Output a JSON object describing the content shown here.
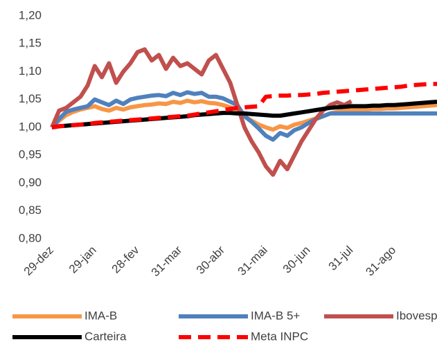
{
  "chart_data": {
    "type": "line",
    "categories": [
      "29-dez",
      null,
      null,
      null,
      null,
      null,
      "29-jan",
      null,
      null,
      null,
      null,
      null,
      "28-fev",
      null,
      null,
      null,
      null,
      null,
      "31-mar",
      null,
      null,
      null,
      null,
      null,
      "30-abr",
      null,
      null,
      null,
      null,
      null,
      "31-mai",
      null,
      null,
      null,
      null,
      null,
      "30-jun",
      null,
      null,
      null,
      null,
      null,
      "31-jul",
      null,
      null,
      null,
      null,
      null,
      "31-ago",
      null,
      null,
      null,
      null,
      null,
      null
    ],
    "ylim": [
      0.8,
      1.2
    ],
    "yticks": [
      {
        "value": 0.8,
        "label": "0,80"
      },
      {
        "value": 0.85,
        "label": "0,85"
      },
      {
        "value": 0.9,
        "label": "0,90"
      },
      {
        "value": 0.95,
        "label": "0,95"
      },
      {
        "value": 1.0,
        "label": "1,00"
      },
      {
        "value": 1.05,
        "label": "1,05"
      },
      {
        "value": 1.1,
        "label": "1,10"
      },
      {
        "value": 1.15,
        "label": "1,15"
      },
      {
        "value": 1.2,
        "label": "1,20"
      }
    ],
    "grid": false,
    "legend": "bottom",
    "series": [
      {
        "name": "IMA-B",
        "color": "#f79646",
        "line_style": "solid",
        "values": [
          1.0,
          1.012,
          1.022,
          1.028,
          1.032,
          1.035,
          1.038,
          1.033,
          1.03,
          1.035,
          1.032,
          1.036,
          1.038,
          1.04,
          1.041,
          1.043,
          1.042,
          1.046,
          1.044,
          1.048,
          1.045,
          1.047,
          1.044,
          1.043,
          1.04,
          1.036,
          1.032,
          1.02,
          1.012,
          1.005,
          1.0,
          0.996,
          1.002,
          0.999,
          1.005,
          1.008,
          1.012,
          1.016,
          1.02,
          1.025,
          1.028,
          1.03,
          1.031,
          1.031,
          1.032,
          1.033,
          1.033,
          1.034,
          1.034,
          1.035,
          1.036,
          1.037,
          1.038,
          1.039,
          1.04
        ]
      },
      {
        "name": "IMA-B 5+",
        "color": "#4f81bd",
        "line_style": "solid",
        "values": [
          1.0,
          1.015,
          1.028,
          1.032,
          1.035,
          1.038,
          1.05,
          1.045,
          1.04,
          1.048,
          1.042,
          1.05,
          1.053,
          1.055,
          1.057,
          1.058,
          1.056,
          1.062,
          1.058,
          1.063,
          1.06,
          1.062,
          1.055,
          1.055,
          1.052,
          1.046,
          1.04,
          1.02,
          1.01,
          0.998,
          0.985,
          0.978,
          0.99,
          0.985,
          0.995,
          1.0,
          1.008,
          1.015,
          1.02,
          1.025,
          1.025,
          1.025,
          1.025,
          1.025,
          1.025,
          1.025,
          1.025,
          1.025,
          1.025,
          1.025,
          1.025,
          1.025,
          1.025,
          1.025,
          1.025
        ]
      },
      {
        "name": "Ibovespa",
        "color": "#c0504d",
        "line_style": "solid",
        "values": [
          1.0,
          1.03,
          1.035,
          1.045,
          1.055,
          1.075,
          1.11,
          1.09,
          1.115,
          1.08,
          1.1,
          1.115,
          1.135,
          1.14,
          1.12,
          1.13,
          1.105,
          1.125,
          1.11,
          1.115,
          1.105,
          1.095,
          1.12,
          1.13,
          1.105,
          1.08,
          1.04,
          1.0,
          0.975,
          0.955,
          0.93,
          0.915,
          0.94,
          0.925,
          0.95,
          0.975,
          0.995,
          1.015,
          1.03,
          1.04,
          1.045,
          1.04,
          1.047,
          null,
          null,
          null,
          null,
          null,
          null,
          null,
          null,
          null,
          null,
          null,
          null
        ]
      },
      {
        "name": "Carteira",
        "color": "#000000",
        "line_style": "solid",
        "values": [
          1.0,
          1.002,
          1.003,
          1.004,
          1.005,
          1.006,
          1.007,
          1.008,
          1.009,
          1.01,
          1.011,
          1.012,
          1.013,
          1.014,
          1.015,
          1.016,
          1.017,
          1.018,
          1.019,
          1.02,
          1.022,
          1.023,
          1.024,
          1.025,
          1.026,
          1.026,
          1.025,
          1.025,
          1.024,
          1.023,
          1.022,
          1.021,
          1.021,
          1.023,
          1.025,
          1.027,
          1.029,
          1.031,
          1.033,
          1.035,
          1.036,
          1.037,
          1.038,
          1.038,
          1.038,
          1.039,
          1.039,
          1.04,
          1.04,
          1.041,
          1.042,
          1.043,
          1.044,
          1.045,
          1.046
        ]
      },
      {
        "name": "Meta INPC",
        "color": "#ff0000",
        "line_style": "dashed",
        "values": [
          1.0,
          1.002,
          1.003,
          1.004,
          1.005,
          1.006,
          1.008,
          1.009,
          1.01,
          1.011,
          1.012,
          1.013,
          1.014,
          1.015,
          1.016,
          1.017,
          1.018,
          1.019,
          1.02,
          1.021,
          1.023,
          1.025,
          1.027,
          1.029,
          1.031,
          1.033,
          1.035,
          1.036,
          1.037,
          1.038,
          1.055,
          1.056,
          1.057,
          1.057,
          1.058,
          1.058,
          1.059,
          1.06,
          1.062,
          1.063,
          1.064,
          1.065,
          1.066,
          1.067,
          1.068,
          1.069,
          1.07,
          1.071,
          1.072,
          1.073,
          1.075,
          1.076,
          1.077,
          1.078,
          1.078
        ]
      }
    ]
  }
}
